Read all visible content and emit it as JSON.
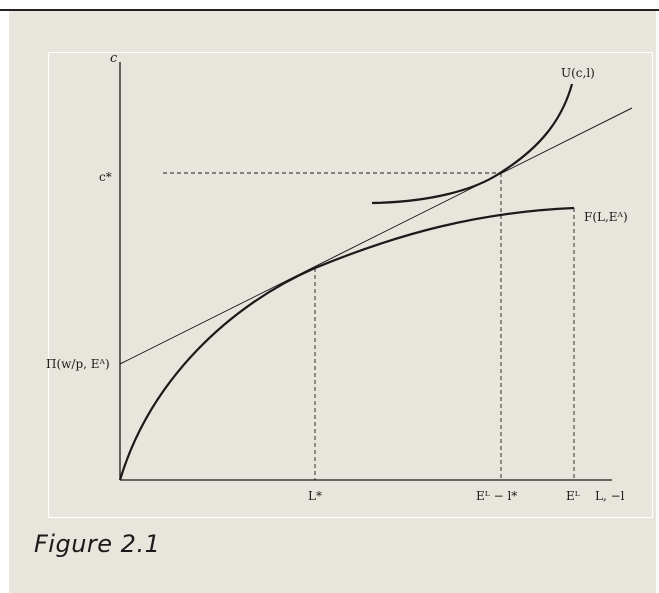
{
  "figure": {
    "caption": "Figure 2.1"
  },
  "diagram": {
    "y_axis_label": "c",
    "x_axis_label": "L, −l",
    "c_star_label": "c*",
    "intercept_label": "Π(w/p, Eᴬ)",
    "L_star_label": "L*",
    "EL_minus_l_star_label": "Eᴸ − l*",
    "EL_label": "Eᴸ",
    "utility_curve_label": "U(c,l)",
    "production_curve_label": "F(L,Eᴬ)"
  },
  "colors": {
    "panel_background": "#e8e5dd",
    "ink": "#1a1a1a",
    "top_rule": "#222222"
  }
}
